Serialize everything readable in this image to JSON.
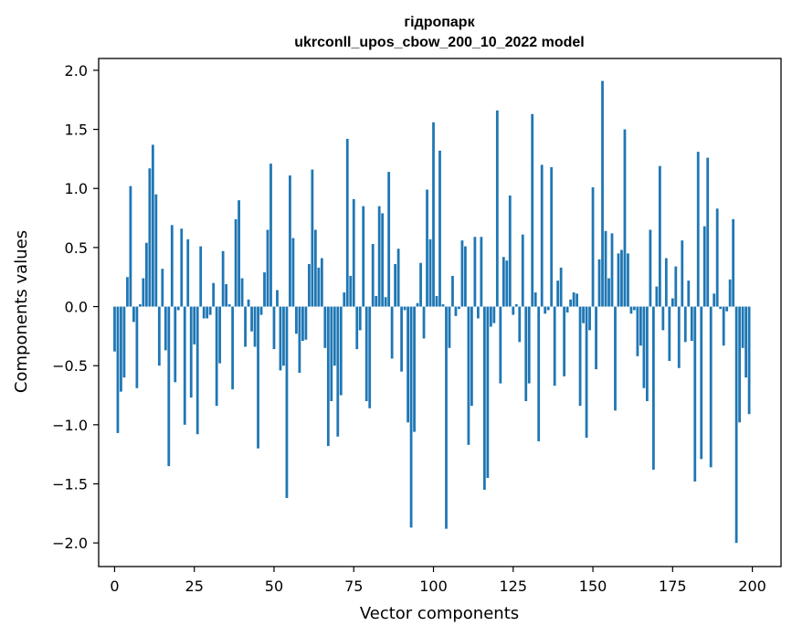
{
  "chart_data": {
    "type": "bar",
    "title_lines": [
      "гідропарк",
      "ukrconll_upos_cbow_200_10_2022 model"
    ],
    "xlabel": "Vector components",
    "ylabel": "Components values",
    "xlim": [
      -5,
      209
    ],
    "ylim": [
      -2.2,
      2.1
    ],
    "xticks": [
      0,
      25,
      50,
      75,
      100,
      125,
      150,
      175,
      200
    ],
    "xtick_labels": [
      "0",
      "25",
      "50",
      "75",
      "100",
      "125",
      "150",
      "175",
      "200"
    ],
    "yticks": [
      2.0,
      1.5,
      1.0,
      0.5,
      0.0,
      -0.5,
      -1.0,
      -1.5,
      -2.0
    ],
    "ytick_labels": [
      "2.0",
      "1.5",
      "1.0",
      "0.5",
      "0.0",
      "−0.5",
      "−1.0",
      "−1.5",
      "−2.0"
    ],
    "grid": false,
    "bar_color": "#1f77b4",
    "x": [
      0,
      1,
      2,
      3,
      4,
      5,
      6,
      7,
      8,
      9,
      10,
      11,
      12,
      13,
      14,
      15,
      16,
      17,
      18,
      19,
      20,
      21,
      22,
      23,
      24,
      25,
      26,
      27,
      28,
      29,
      30,
      31,
      32,
      33,
      34,
      35,
      36,
      37,
      38,
      39,
      40,
      41,
      42,
      43,
      44,
      45,
      46,
      47,
      48,
      49,
      50,
      51,
      52,
      53,
      54,
      55,
      56,
      57,
      58,
      59,
      60,
      61,
      62,
      63,
      64,
      65,
      66,
      67,
      68,
      69,
      70,
      71,
      72,
      73,
      74,
      75,
      76,
      77,
      78,
      79,
      80,
      81,
      82,
      83,
      84,
      85,
      86,
      87,
      88,
      89,
      90,
      91,
      92,
      93,
      94,
      95,
      96,
      97,
      98,
      99,
      100,
      101,
      102,
      103,
      104,
      105,
      106,
      107,
      108,
      109,
      110,
      111,
      112,
      113,
      114,
      115,
      116,
      117,
      118,
      119,
      120,
      121,
      122,
      123,
      124,
      125,
      126,
      127,
      128,
      129,
      130,
      131,
      132,
      133,
      134,
      135,
      136,
      137,
      138,
      139,
      140,
      141,
      142,
      143,
      144,
      145,
      146,
      147,
      148,
      149,
      150,
      151,
      152,
      153,
      154,
      155,
      156,
      157,
      158,
      159,
      160,
      161,
      162,
      163,
      164,
      165,
      166,
      167,
      168,
      169,
      170,
      171,
      172,
      173,
      174,
      175,
      176,
      177,
      178,
      179,
      180,
      181,
      182,
      183,
      184,
      185,
      186,
      187,
      188,
      189,
      190,
      191,
      192,
      193,
      194,
      195,
      196,
      197,
      198,
      199
    ],
    "values": [
      -0.38,
      -1.07,
      -0.72,
      -0.6,
      0.25,
      1.02,
      -0.13,
      -0.69,
      0.02,
      0.24,
      0.54,
      1.17,
      1.37,
      0.95,
      -0.5,
      0.32,
      -0.37,
      -1.35,
      0.69,
      -0.64,
      -0.03,
      0.66,
      -1.0,
      0.57,
      -0.77,
      -0.32,
      -1.08,
      0.51,
      -0.1,
      -0.1,
      -0.07,
      0.2,
      -0.84,
      -0.48,
      0.47,
      0.19,
      0.02,
      -0.7,
      0.74,
      0.9,
      0.24,
      -0.34,
      0.06,
      -0.21,
      -0.34,
      -1.2,
      -0.07,
      0.29,
      0.65,
      1.21,
      -0.36,
      0.14,
      -0.54,
      -0.5,
      -1.62,
      1.11,
      0.58,
      -0.23,
      -0.56,
      -0.29,
      -0.28,
      0.36,
      1.16,
      0.65,
      0.33,
      0.41,
      -0.35,
      -1.18,
      -0.8,
      -0.5,
      -1.1,
      -0.75,
      0.12,
      1.42,
      0.26,
      0.91,
      -0.36,
      -0.2,
      0.85,
      -0.8,
      -0.86,
      0.53,
      0.09,
      0.85,
      0.79,
      0.08,
      1.14,
      -0.44,
      0.36,
      0.49,
      -0.55,
      -0.03,
      -0.98,
      -1.87,
      -1.06,
      0.03,
      0.37,
      -0.27,
      0.99,
      0.57,
      1.56,
      0.09,
      1.32,
      0.02,
      -1.88,
      -0.35,
      0.26,
      -0.08,
      -0.02,
      0.56,
      0.51,
      -1.17,
      -0.84,
      0.59,
      -0.1,
      0.59,
      -1.55,
      -1.45,
      -0.17,
      -0.14,
      1.66,
      -0.65,
      0.42,
      0.39,
      0.94,
      -0.07,
      0.02,
      -0.3,
      0.61,
      -0.8,
      -0.65,
      1.63,
      0.12,
      -1.14,
      1.2,
      -0.06,
      -0.03,
      1.18,
      -0.67,
      0.22,
      0.33,
      -0.59,
      -0.05,
      0.06,
      0.12,
      0.11,
      -0.84,
      -0.14,
      -1.11,
      -0.2,
      1.01,
      -0.53,
      0.4,
      1.91,
      0.64,
      0.24,
      0.62,
      -0.88,
      0.45,
      0.48,
      1.5,
      0.45,
      -0.06,
      -0.03,
      -0.42,
      -0.33,
      -0.69,
      -0.8,
      0.65,
      -1.38,
      0.17,
      1.19,
      -0.2,
      0.41,
      -0.46,
      0.07,
      0.34,
      -0.52,
      0.56,
      -0.3,
      0.22,
      -0.29,
      -1.48,
      1.31,
      -1.29,
      0.68,
      1.26,
      -1.36,
      0.11,
      0.83,
      -0.02,
      -0.33,
      -0.04,
      0.23,
      0.74,
      -2.0,
      -0.98,
      -0.35,
      -0.6,
      -0.91
    ]
  }
}
